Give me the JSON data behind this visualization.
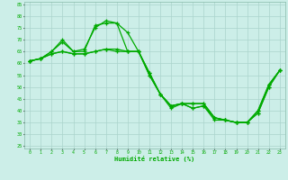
{
  "xlabel": "Humidité relative (%)",
  "background_color": "#cceee8",
  "grid_color": "#aad4cc",
  "line_color": "#00aa00",
  "x_ticks": [
    0,
    1,
    2,
    3,
    4,
    5,
    6,
    7,
    8,
    9,
    10,
    11,
    12,
    13,
    14,
    15,
    16,
    17,
    18,
    19,
    20,
    21,
    22,
    23
  ],
  "y_ticks": [
    25,
    30,
    35,
    40,
    45,
    50,
    55,
    60,
    65,
    70,
    75,
    80,
    85
  ],
  "ylim": [
    24,
    86
  ],
  "xlim": [
    -0.5,
    23.5
  ],
  "series": [
    [
      61,
      62,
      65,
      69,
      65,
      66,
      75,
      78,
      77,
      73,
      65,
      56,
      47,
      42,
      43,
      43,
      43,
      37,
      36,
      35,
      35,
      39,
      50,
      57
    ],
    [
      61,
      62,
      64,
      65,
      64,
      64,
      65,
      66,
      66,
      65,
      65,
      55,
      47,
      42,
      43,
      41,
      42,
      37,
      36,
      35,
      35,
      40,
      51,
      57
    ],
    [
      61,
      62,
      64,
      65,
      64,
      64,
      65,
      66,
      65,
      65,
      65,
      55,
      47,
      41,
      43,
      41,
      42,
      36,
      36,
      35,
      35,
      40,
      51,
      57
    ],
    [
      61,
      62,
      65,
      70,
      65,
      65,
      76,
      77,
      77,
      65,
      65,
      56,
      47,
      42,
      43,
      43,
      43,
      37,
      36,
      35,
      35,
      39,
      50,
      57
    ]
  ]
}
